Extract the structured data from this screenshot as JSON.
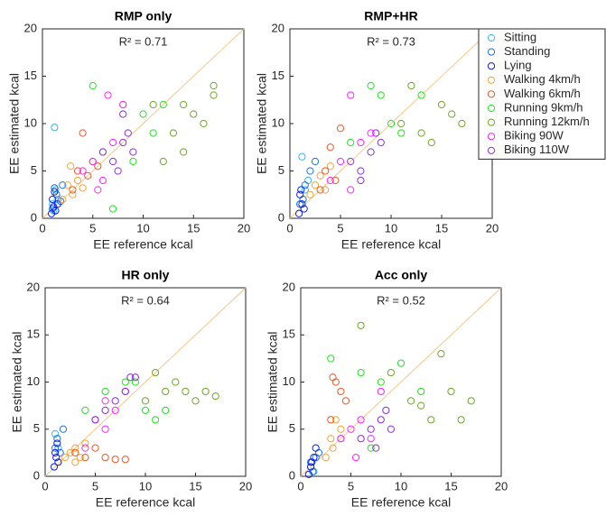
{
  "legend": [
    {
      "name": "Sitting",
      "color": "#35b5ea"
    },
    {
      "name": "Standing",
      "color": "#1f6fe0"
    },
    {
      "name": "Lying",
      "color": "#1020d0"
    },
    {
      "name": "Walking 4km/h",
      "color": "#f2a33a"
    },
    {
      "name": "Walking 6km/h",
      "color": "#e5582a"
    },
    {
      "name": "Running 9km/h",
      "color": "#22e022"
    },
    {
      "name": "Running 12km/h",
      "color": "#6fa22a"
    },
    {
      "name": "Biking 90W",
      "color": "#ff22ff"
    },
    {
      "name": "Biking 110W",
      "color": "#8a2ed8"
    }
  ],
  "chart_data": [
    {
      "type": "scatter",
      "title": "RMP only",
      "annotation": "R² = 0.71",
      "xlabel": "EE reference kcal",
      "ylabel": "EE estimated kcal",
      "xlim": [
        0,
        20
      ],
      "ylim": [
        0,
        20
      ],
      "xticks": [
        0,
        5,
        10,
        15,
        20
      ],
      "yticks": [
        0,
        5,
        10,
        15,
        20
      ],
      "diagonal_color": "#f3c78a",
      "series": [
        {
          "x": [
            1.2,
            1.0,
            1.5,
            1.1,
            1.3
          ],
          "y": [
            9.6,
            1.5,
            2.0,
            0.8,
            3.0
          ]
        },
        {
          "x": [
            1.0,
            1.4,
            1.8,
            1.2,
            2.0
          ],
          "y": [
            1.0,
            2.5,
            1.8,
            3.2,
            3.5
          ]
        },
        {
          "x": [
            0.9,
            1.1,
            1.3,
            1.0,
            1.5,
            1.2
          ],
          "y": [
            0.5,
            1.2,
            0.8,
            2.0,
            1.5,
            2.8
          ]
        },
        {
          "x": [
            2.0,
            2.5,
            3.0,
            3.5,
            2.8,
            4.0
          ],
          "y": [
            2.0,
            3.5,
            2.5,
            4.0,
            5.5,
            3.2
          ]
        },
        {
          "x": [
            3.0,
            3.5,
            4.5,
            5.0,
            4.0,
            5.5
          ],
          "y": [
            3.0,
            5.0,
            4.5,
            6.0,
            9.0,
            5.5
          ]
        },
        {
          "x": [
            6,
            8,
            10,
            11,
            12,
            7,
            9,
            5
          ],
          "y": [
            7,
            12,
            11,
            9,
            12,
            1,
            6,
            14
          ]
        },
        {
          "x": [
            11,
            13,
            14,
            15,
            16,
            17,
            17,
            12,
            14
          ],
          "y": [
            12,
            9,
            7,
            11,
            10,
            14,
            13,
            6,
            12
          ]
        },
        {
          "x": [
            4,
            5,
            6,
            7,
            8,
            6.5,
            5.5
          ],
          "y": [
            5,
            6,
            4,
            8,
            12,
            13,
            3
          ]
        },
        {
          "x": [
            6,
            7,
            8,
            8.5,
            9,
            7.5,
            8
          ],
          "y": [
            7,
            6,
            8,
            9,
            7,
            5,
            11
          ]
        }
      ]
    },
    {
      "type": "scatter",
      "title": "RMP+HR",
      "annotation": "R² = 0.73",
      "xlabel": "EE reference kcal",
      "ylabel": "EE estimated kcal",
      "xlim": [
        0,
        20
      ],
      "ylim": [
        0,
        20
      ],
      "xticks": [
        0,
        5,
        10,
        15,
        20
      ],
      "yticks": [
        0,
        5,
        10,
        15,
        20
      ],
      "diagonal_color": "#f3c78a",
      "series": [
        {
          "x": [
            1.2,
            1.5,
            1.0,
            1.8
          ],
          "y": [
            6.5,
            3.0,
            1.5,
            4.0
          ]
        },
        {
          "x": [
            1.0,
            1.5,
            2.0,
            2.5,
            1.3
          ],
          "y": [
            1.5,
            3.5,
            5.0,
            6.0,
            2.0
          ]
        },
        {
          "x": [
            0.9,
            1.2,
            1.0,
            1.4,
            1.1
          ],
          "y": [
            0.5,
            1.5,
            2.5,
            1.0,
            3.0
          ]
        },
        {
          "x": [
            2,
            2.5,
            3,
            3.5,
            4
          ],
          "y": [
            2.5,
            3.5,
            4.5,
            3,
            5.5
          ]
        },
        {
          "x": [
            3,
            3.5,
            4,
            5,
            4.5
          ],
          "y": [
            3,
            5,
            7.5,
            9.5,
            4
          ]
        },
        {
          "x": [
            6,
            8,
            9,
            11,
            13,
            10
          ],
          "y": [
            8,
            14,
            13,
            9,
            13,
            10
          ]
        },
        {
          "x": [
            11,
            13,
            14,
            15,
            16,
            17,
            12
          ],
          "y": [
            10,
            9,
            8,
            12,
            11,
            10,
            14
          ]
        },
        {
          "x": [
            4,
            5,
            6,
            7,
            8,
            6
          ],
          "y": [
            4,
            6,
            3,
            8,
            9,
            13
          ]
        },
        {
          "x": [
            6,
            7,
            8,
            8.5,
            9,
            7
          ],
          "y": [
            6,
            5,
            7,
            9,
            8,
            4
          ]
        }
      ]
    },
    {
      "type": "scatter",
      "title": "HR only",
      "annotation": "R² = 0.64",
      "xlabel": "EE reference kcal",
      "ylabel": "EE estimated kcal",
      "xlim": [
        0,
        20
      ],
      "ylim": [
        0,
        20
      ],
      "xticks": [
        0,
        5,
        10,
        15,
        20
      ],
      "yticks": [
        0,
        5,
        10,
        15,
        20
      ],
      "diagonal_color": "#f3c78a",
      "series": [
        {
          "x": [
            1.0,
            1.3
          ],
          "y": [
            4.5,
            3.0
          ]
        },
        {
          "x": [
            1.0,
            1.2,
            1.5,
            1.8
          ],
          "y": [
            3.0,
            4.0,
            2.5,
            5.0
          ]
        },
        {
          "x": [
            0.9,
            1.1,
            1.3,
            1.0,
            1.2
          ],
          "y": [
            1.0,
            2.0,
            1.5,
            2.5,
            3.5
          ]
        },
        {
          "x": [
            2,
            2.5,
            3,
            3.5,
            4,
            3
          ],
          "y": [
            2,
            2.5,
            3,
            2,
            3.5,
            1.5
          ]
        },
        {
          "x": [
            3,
            4,
            5,
            6,
            7,
            8
          ],
          "y": [
            2.5,
            2,
            3,
            2,
            1.8,
            1.8
          ]
        },
        {
          "x": [
            4,
            6,
            8,
            10,
            11,
            12,
            9
          ],
          "y": [
            7,
            9,
            10,
            7,
            6,
            7,
            10
          ]
        },
        {
          "x": [
            10,
            12,
            13,
            14,
            15,
            16,
            17,
            11
          ],
          "y": [
            8,
            9,
            10,
            9,
            8,
            9,
            8.5,
            11
          ]
        },
        {
          "x": [
            4,
            5,
            6,
            7,
            8,
            6
          ],
          "y": [
            3,
            6,
            8,
            7,
            9,
            5
          ]
        },
        {
          "x": [
            5,
            6,
            7,
            8,
            9,
            8.5
          ],
          "y": [
            6,
            7,
            8,
            9,
            10.5,
            10.5
          ]
        }
      ]
    },
    {
      "type": "scatter",
      "title": "Acc only",
      "annotation": "R² = 0.52",
      "xlabel": "EE reference kcal",
      "ylabel": "EE estimated kcal",
      "xlim": [
        0,
        20
      ],
      "ylim": [
        0,
        20
      ],
      "xticks": [
        0,
        5,
        10,
        15,
        20
      ],
      "yticks": [
        0,
        5,
        10,
        15,
        20
      ],
      "diagonal_color": "#f3c78a",
      "series": [
        {
          "x": [
            1.0,
            1.3
          ],
          "y": [
            1.0,
            0.5
          ]
        },
        {
          "x": [
            1.0,
            1.5,
            1.2,
            1.8
          ],
          "y": [
            1.5,
            2.0,
            0.5,
            2.5
          ]
        },
        {
          "x": [
            0.8,
            1.0,
            1.3,
            1.5,
            1.1
          ],
          "y": [
            0.2,
            1.0,
            2.0,
            3.0,
            1.5
          ]
        },
        {
          "x": [
            2.5,
            3,
            3.5,
            4,
            3.2
          ],
          "y": [
            2,
            4,
            6,
            5,
            3
          ]
        },
        {
          "x": [
            3,
            3.5,
            4,
            4.5,
            3.2
          ],
          "y": [
            6,
            10,
            9,
            8,
            10.5
          ]
        },
        {
          "x": [
            3,
            4,
            6,
            8,
            10,
            12,
            7
          ],
          "y": [
            12.5,
            4,
            11,
            10,
            12,
            9,
            3
          ]
        },
        {
          "x": [
            9,
            11,
            13,
            14,
            15,
            16,
            17,
            12,
            6
          ],
          "y": [
            11,
            8,
            6,
            13,
            9,
            6,
            8,
            7.5,
            16
          ]
        },
        {
          "x": [
            4,
            5,
            6,
            7,
            8,
            5.5
          ],
          "y": [
            4,
            5,
            6,
            4,
            9,
            2
          ]
        },
        {
          "x": [
            6,
            7,
            8,
            8.5,
            9,
            7.5
          ],
          "y": [
            4,
            5,
            6,
            7,
            5,
            3
          ]
        }
      ]
    }
  ]
}
